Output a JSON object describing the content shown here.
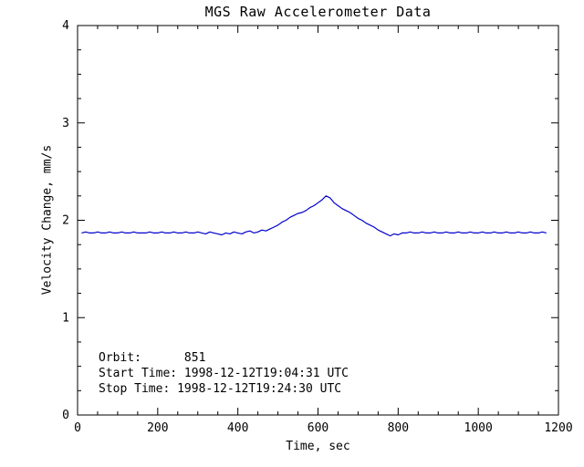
{
  "colors": {
    "line": "#0000cc",
    "axis": "#000000",
    "background": "#ffffff"
  },
  "chart_data": {
    "type": "line",
    "title": "MGS Raw Accelerometer Data",
    "xlabel": "Time, sec",
    "ylabel": "Velocity Change, mm/s",
    "xlim": [
      0,
      1200
    ],
    "ylim": [
      0,
      4
    ],
    "x_ticks": [
      0,
      200,
      400,
      600,
      800,
      1000,
      1200
    ],
    "y_ticks": [
      0,
      1,
      2,
      3,
      4
    ],
    "x_minor_step": 50,
    "y_minor_step": 0.25,
    "grid": false,
    "legend": "none",
    "annotations": [
      "Orbit:      851",
      "Start Time: 1998-12-12T19:04:31 UTC",
      "Stop Time: 1998-12-12T19:24:30 UTC"
    ],
    "series": [
      {
        "name": "velocity-change",
        "x_start": 10,
        "dx": 10,
        "y": [
          1.87,
          1.88,
          1.87,
          1.87,
          1.88,
          1.87,
          1.87,
          1.88,
          1.87,
          1.87,
          1.88,
          1.87,
          1.87,
          1.88,
          1.87,
          1.87,
          1.87,
          1.88,
          1.87,
          1.87,
          1.88,
          1.87,
          1.87,
          1.88,
          1.87,
          1.87,
          1.88,
          1.87,
          1.87,
          1.88,
          1.87,
          1.86,
          1.88,
          1.87,
          1.86,
          1.85,
          1.87,
          1.86,
          1.88,
          1.87,
          1.86,
          1.88,
          1.89,
          1.87,
          1.88,
          1.9,
          1.89,
          1.91,
          1.93,
          1.95,
          1.98,
          2.0,
          2.03,
          2.05,
          2.07,
          2.08,
          2.1,
          2.13,
          2.15,
          2.18,
          2.21,
          2.25,
          2.23,
          2.18,
          2.15,
          2.12,
          2.1,
          2.08,
          2.05,
          2.02,
          2.0,
          1.97,
          1.95,
          1.93,
          1.9,
          1.88,
          1.86,
          1.84,
          1.86,
          1.85,
          1.87,
          1.87,
          1.88,
          1.87,
          1.87,
          1.88,
          1.87,
          1.87,
          1.88,
          1.87,
          1.87,
          1.88,
          1.87,
          1.87,
          1.88,
          1.87,
          1.87,
          1.88,
          1.87,
          1.87,
          1.88,
          1.87,
          1.87,
          1.88,
          1.87,
          1.87,
          1.88,
          1.87,
          1.87,
          1.88,
          1.87,
          1.87,
          1.88,
          1.87,
          1.87,
          1.88,
          1.87
        ]
      }
    ]
  }
}
